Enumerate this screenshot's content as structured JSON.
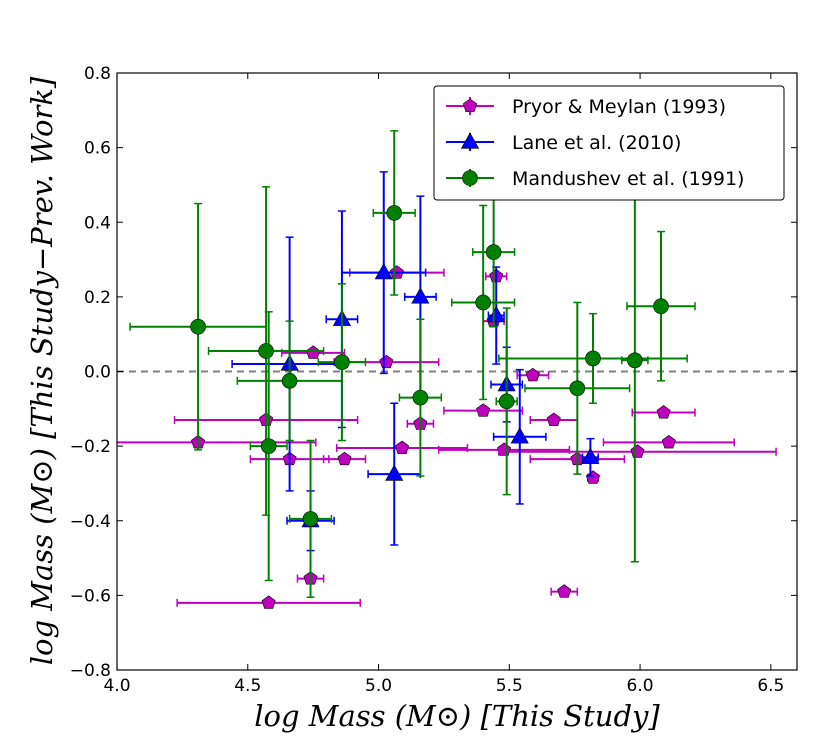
{
  "chart_data": {
    "type": "scatter",
    "title": "",
    "xlabel": "log Mass (M⊙) [This Study]",
    "ylabel": "log Mass (M⊙) [This Study−Prev. Work]",
    "xlim": [
      4.0,
      6.6
    ],
    "ylim": [
      -0.8,
      0.8
    ],
    "xticks": [
      4.0,
      4.5,
      5.0,
      5.5,
      6.0,
      6.5
    ],
    "xtick_labels": [
      "4.0",
      "4.5",
      "5.0",
      "5.5",
      "6.0",
      "6.5"
    ],
    "yticks": [
      -0.8,
      -0.6,
      -0.4,
      -0.2,
      0.0,
      0.2,
      0.4,
      0.6,
      0.8
    ],
    "ytick_labels": [
      "−0.8",
      "−0.6",
      "−0.4",
      "−0.2",
      "0.0",
      "0.2",
      "0.4",
      "0.6",
      "0.8"
    ],
    "reference_line": {
      "y": 0.0,
      "style": "dashed",
      "color": "#808080"
    },
    "legend_position": "top-right",
    "series": [
      {
        "name": "Pryor & Meylan (1993)",
        "marker": "pentagon",
        "color": "#bf00bf",
        "points": [
          {
            "x": 4.31,
            "y": -0.19,
            "xerr": 0.45
          },
          {
            "x": 4.57,
            "y": -0.13,
            "xerr": 0.35
          },
          {
            "x": 4.58,
            "y": -0.62,
            "xerr": 0.35
          },
          {
            "x": 4.66,
            "y": -0.235,
            "xerr": 0.15
          },
          {
            "x": 4.74,
            "y": -0.555,
            "xerr": 0.05
          },
          {
            "x": 4.75,
            "y": 0.05,
            "xerr": 0.12
          },
          {
            "x": 4.87,
            "y": -0.235,
            "xerr": 0.08
          },
          {
            "x": 5.03,
            "y": 0.025,
            "xerr": 0.2
          },
          {
            "x": 5.07,
            "y": 0.265,
            "xerr": 0.18
          },
          {
            "x": 5.09,
            "y": -0.205,
            "xerr": 0.25
          },
          {
            "x": 5.16,
            "y": -0.14,
            "xerr": 0.05
          },
          {
            "x": 5.4,
            "y": -0.105,
            "xerr": 0.15
          },
          {
            "x": 5.44,
            "y": 0.135,
            "xerr": 0.04
          },
          {
            "x": 5.45,
            "y": 0.255,
            "xerr": 0.04
          },
          {
            "x": 5.48,
            "y": -0.21,
            "xerr": 0.25
          },
          {
            "x": 5.59,
            "y": -0.01,
            "xerr": 0.06
          },
          {
            "x": 5.67,
            "y": -0.13,
            "xerr": 0.09
          },
          {
            "x": 5.71,
            "y": -0.59,
            "xerr": 0.05
          },
          {
            "x": 5.76,
            "y": -0.235,
            "xerr": 0.18
          },
          {
            "x": 5.82,
            "y": -0.285,
            "xerr": 0.02
          },
          {
            "x": 5.99,
            "y": -0.215,
            "xerr": 0.53
          },
          {
            "x": 6.09,
            "y": -0.11,
            "xerr": 0.12
          },
          {
            "x": 6.11,
            "y": -0.19,
            "xerr": 0.25
          }
        ]
      },
      {
        "name": "Lane et al. (2010)",
        "marker": "triangle",
        "color": "#0000ff",
        "points": [
          {
            "x": 4.66,
            "y": 0.02,
            "xerr": 0.22,
            "yerr": 0.34
          },
          {
            "x": 4.74,
            "y": -0.4,
            "xerr": 0.09,
            "yerr": 0.08
          },
          {
            "x": 4.86,
            "y": 0.14,
            "xerr": 0.06,
            "yerr": 0.29
          },
          {
            "x": 5.02,
            "y": 0.265,
            "xerr": 0.16,
            "yerr": 0.27
          },
          {
            "x": 5.06,
            "y": -0.275,
            "xerr": 0.1,
            "yerr": 0.19
          },
          {
            "x": 5.16,
            "y": 0.2,
            "xerr": 0.06,
            "yerr": 0.27
          },
          {
            "x": 5.45,
            "y": 0.15,
            "xerr": 0.03,
            "yerr": 0.13
          },
          {
            "x": 5.49,
            "y": -0.035,
            "xerr": 0.06,
            "yerr": 0.1
          },
          {
            "x": 5.54,
            "y": -0.175,
            "xerr": 0.1,
            "yerr": 0.18
          },
          {
            "x": 5.81,
            "y": -0.23,
            "xerr": 0.03,
            "yerr": 0.05
          }
        ]
      },
      {
        "name": "Mandushev et al. (1991)",
        "marker": "circle",
        "color": "#008000",
        "points": [
          {
            "x": 4.31,
            "y": 0.12,
            "xerr": 0.26,
            "yerr": 0.33
          },
          {
            "x": 4.57,
            "y": 0.055,
            "xerr": 0.22,
            "yerr": 0.44
          },
          {
            "x": 4.58,
            "y": -0.2,
            "xerr": 0.07,
            "yerr": 0.36
          },
          {
            "x": 4.66,
            "y": -0.025,
            "xerr": 0.2,
            "yerr": 0.16
          },
          {
            "x": 4.74,
            "y": -0.395,
            "xerr": 0.08,
            "yerr": 0.21
          },
          {
            "x": 4.86,
            "y": 0.025,
            "xerr": 0.09,
            "yerr": 0.21
          },
          {
            "x": 5.06,
            "y": 0.425,
            "xerr": 0.08,
            "yerr": 0.22
          },
          {
            "x": 5.16,
            "y": -0.07,
            "xerr": 0.08,
            "yerr": 0.21
          },
          {
            "x": 5.4,
            "y": 0.185,
            "xerr": 0.12,
            "yerr": 0.26
          },
          {
            "x": 5.44,
            "y": 0.32,
            "xerr": 0.08,
            "yerr": 0.2
          },
          {
            "x": 5.49,
            "y": -0.08,
            "xerr": 0.04,
            "yerr": 0.25
          },
          {
            "x": 5.76,
            "y": -0.045,
            "xerr": 0.2,
            "yerr": 0.23
          },
          {
            "x": 5.82,
            "y": 0.035,
            "xerr": 0.36,
            "yerr": 0.12
          },
          {
            "x": 5.98,
            "y": 0.03,
            "xerr": 0.05,
            "yerr": 0.54
          },
          {
            "x": 6.08,
            "y": 0.175,
            "xerr": 0.13,
            "yerr": 0.2
          }
        ]
      }
    ]
  }
}
